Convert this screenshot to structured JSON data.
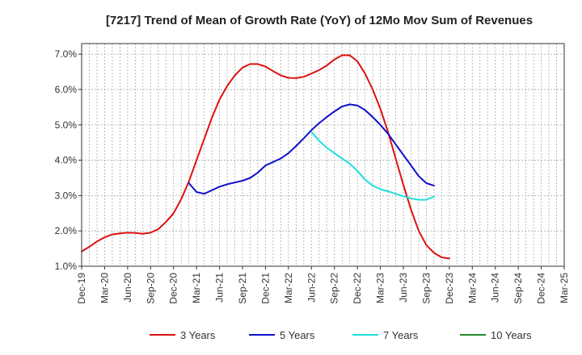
{
  "chart_data": {
    "type": "line",
    "title": "[7217]  Trend of Mean of Growth Rate (YoY) of 12Mo Mov Sum of Revenues",
    "xlabel": "",
    "ylabel": "",
    "ylim": [
      1.0,
      7.3
    ],
    "yticks": [
      1.0,
      2.0,
      3.0,
      4.0,
      5.0,
      6.0,
      7.0
    ],
    "ytick_labels": [
      "1.0%",
      "2.0%",
      "3.0%",
      "4.0%",
      "5.0%",
      "6.0%",
      "7.0%"
    ],
    "x_start": "Dec-19",
    "x_labels": [
      "Dec-19",
      "Mar-20",
      "Jun-20",
      "Sep-20",
      "Dec-20",
      "Mar-21",
      "Jun-21",
      "Sep-21",
      "Dec-21",
      "Mar-22",
      "Jun-22",
      "Sep-22",
      "Dec-22",
      "Mar-23",
      "Jun-23",
      "Sep-23",
      "Dec-23",
      "Mar-24",
      "Jun-24",
      "Sep-24",
      "Dec-24",
      "Mar-25"
    ],
    "grid": true,
    "legend_position": "bottom",
    "series": [
      {
        "name": "3 Years",
        "color": "#dd1111",
        "points": [
          [
            0,
            1.42
          ],
          [
            1,
            1.55
          ],
          [
            2,
            1.7
          ],
          [
            3,
            1.82
          ],
          [
            4,
            1.9
          ],
          [
            5,
            1.93
          ],
          [
            6,
            1.95
          ],
          [
            7,
            1.94
          ],
          [
            8,
            1.92
          ],
          [
            9,
            1.95
          ],
          [
            10,
            2.05
          ],
          [
            11,
            2.25
          ],
          [
            12,
            2.5
          ],
          [
            13,
            2.9
          ],
          [
            14,
            3.4
          ],
          [
            15,
            4.0
          ],
          [
            16,
            4.6
          ],
          [
            17,
            5.2
          ],
          [
            18,
            5.72
          ],
          [
            19,
            6.1
          ],
          [
            20,
            6.4
          ],
          [
            21,
            6.62
          ],
          [
            22,
            6.72
          ],
          [
            23,
            6.72
          ],
          [
            24,
            6.65
          ],
          [
            25,
            6.52
          ],
          [
            26,
            6.4
          ],
          [
            27,
            6.33
          ],
          [
            28,
            6.32
          ],
          [
            29,
            6.36
          ],
          [
            30,
            6.45
          ],
          [
            31,
            6.55
          ],
          [
            32,
            6.68
          ],
          [
            33,
            6.85
          ],
          [
            34,
            6.97
          ],
          [
            35,
            6.97
          ],
          [
            36,
            6.8
          ],
          [
            37,
            6.45
          ],
          [
            38,
            6.0
          ],
          [
            39,
            5.45
          ],
          [
            40,
            4.8
          ],
          [
            41,
            4.05
          ],
          [
            42,
            3.3
          ],
          [
            43,
            2.6
          ],
          [
            44,
            2.0
          ],
          [
            45,
            1.6
          ],
          [
            46,
            1.38
          ],
          [
            47,
            1.25
          ],
          [
            48,
            1.22
          ]
        ]
      },
      {
        "name": "5 Years",
        "color": "#1010cc",
        "points": [
          [
            14,
            3.35
          ],
          [
            15,
            3.1
          ],
          [
            16,
            3.05
          ],
          [
            17,
            3.15
          ],
          [
            18,
            3.25
          ],
          [
            19,
            3.32
          ],
          [
            20,
            3.37
          ],
          [
            21,
            3.42
          ],
          [
            22,
            3.5
          ],
          [
            23,
            3.65
          ],
          [
            24,
            3.85
          ],
          [
            25,
            3.95
          ],
          [
            26,
            4.05
          ],
          [
            27,
            4.2
          ],
          [
            28,
            4.4
          ],
          [
            29,
            4.62
          ],
          [
            30,
            4.85
          ],
          [
            31,
            5.05
          ],
          [
            32,
            5.22
          ],
          [
            33,
            5.38
          ],
          [
            34,
            5.52
          ],
          [
            35,
            5.58
          ],
          [
            36,
            5.55
          ],
          [
            37,
            5.42
          ],
          [
            38,
            5.22
          ],
          [
            39,
            5.0
          ],
          [
            40,
            4.75
          ],
          [
            41,
            4.45
          ],
          [
            42,
            4.15
          ],
          [
            43,
            3.85
          ],
          [
            44,
            3.55
          ],
          [
            45,
            3.35
          ],
          [
            46,
            3.28
          ]
        ]
      },
      {
        "name": "7 Years",
        "color": "#22dddd",
        "points": [
          [
            30,
            4.8
          ],
          [
            31,
            4.55
          ],
          [
            32,
            4.35
          ],
          [
            33,
            4.2
          ],
          [
            34,
            4.05
          ],
          [
            35,
            3.9
          ],
          [
            36,
            3.7
          ],
          [
            37,
            3.45
          ],
          [
            38,
            3.28
          ],
          [
            39,
            3.18
          ],
          [
            40,
            3.12
          ],
          [
            41,
            3.05
          ],
          [
            42,
            2.98
          ],
          [
            43,
            2.92
          ],
          [
            44,
            2.88
          ],
          [
            45,
            2.88
          ],
          [
            46,
            2.97
          ]
        ]
      },
      {
        "name": "10 Years",
        "color": "#22882a",
        "points": []
      }
    ]
  }
}
